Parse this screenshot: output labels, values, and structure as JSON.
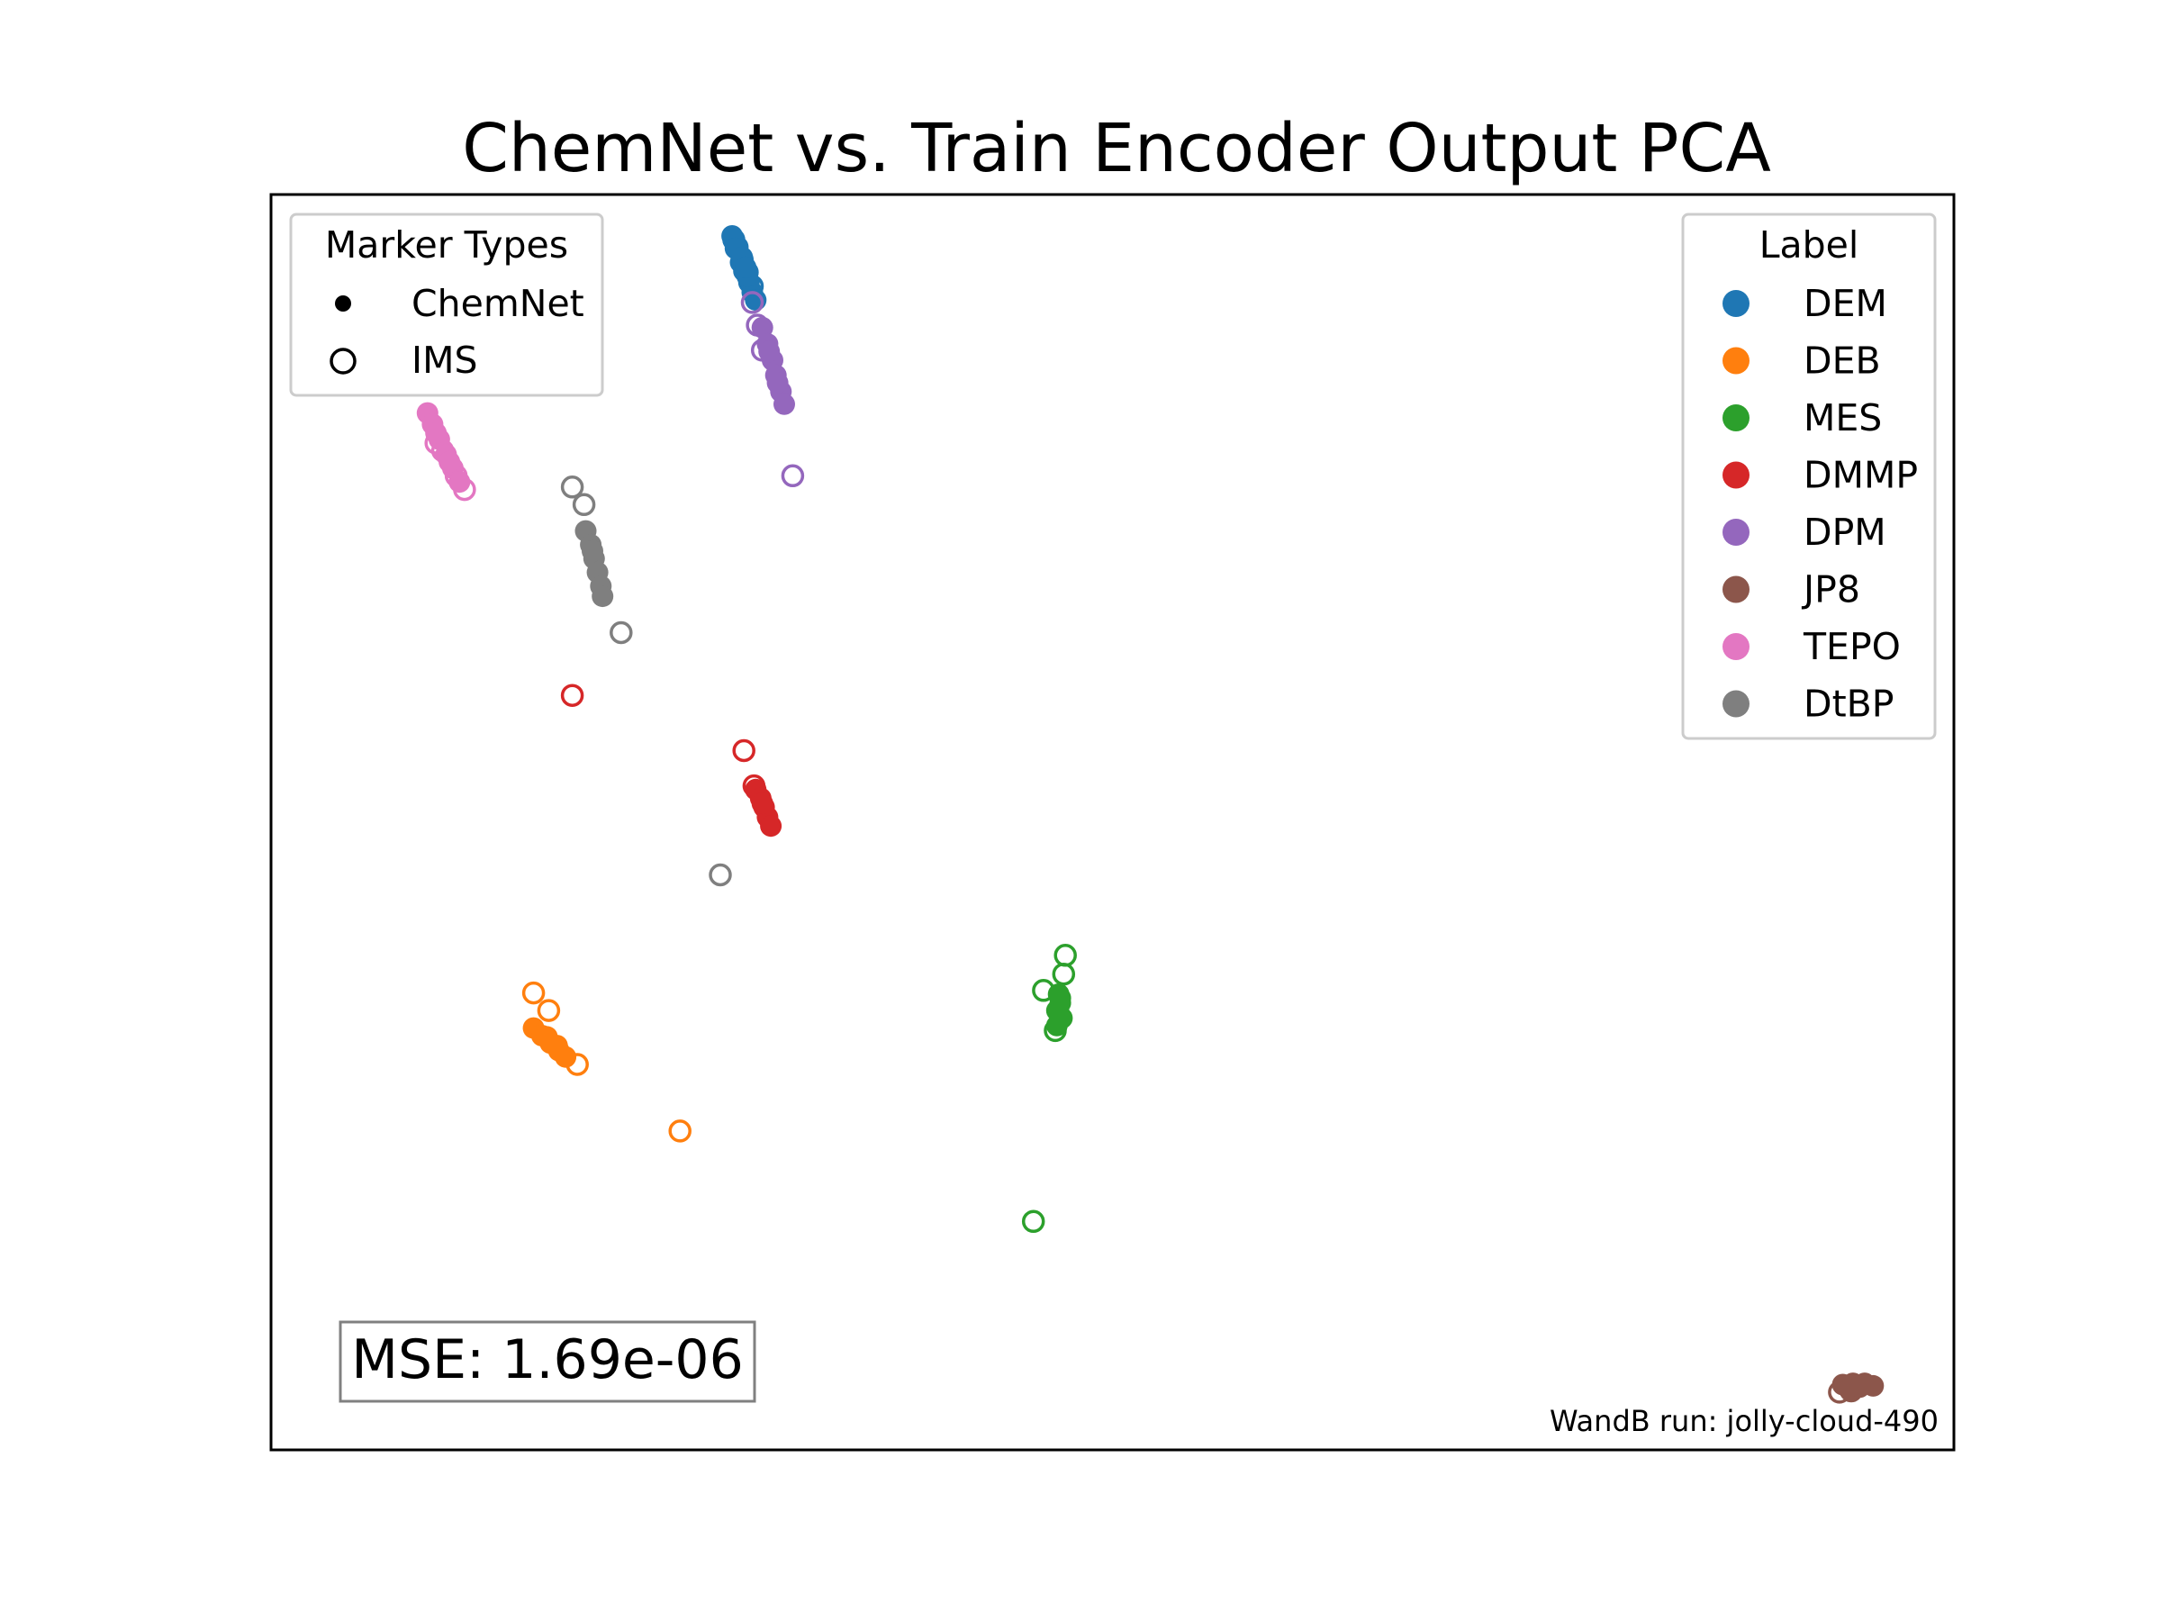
{
  "chart_data": {
    "type": "scatter",
    "title": "ChemNet vs. Train Encoder Output PCA",
    "xlabel": "",
    "ylabel": "",
    "axis_ticks": "none",
    "grid": false,
    "xlim": [
      0,
      100
    ],
    "ylim": [
      0,
      100
    ],
    "marker_legend": {
      "title": "Marker Types",
      "placement": "upper-left",
      "entries": [
        {
          "label": "ChemNet",
          "marker": "filled-circle"
        },
        {
          "label": "IMS",
          "marker": "open-circle"
        }
      ]
    },
    "label_legend": {
      "title": "Label",
      "placement": "upper-right"
    },
    "series": [
      {
        "name": "DEM",
        "color": "#1f77b4",
        "chemnet": [
          [
            27.4,
            96.7
          ],
          [
            27.6,
            95.7
          ],
          [
            27.9,
            94.6
          ],
          [
            28.1,
            93.9
          ],
          [
            28.4,
            93.0
          ],
          [
            28.6,
            92.2
          ],
          [
            28.0,
            95.0
          ],
          [
            28.3,
            93.5
          ],
          [
            28.8,
            91.6
          ],
          [
            28.2,
            94.2
          ]
        ],
        "ims": [
          [
            27.7,
            95.8
          ],
          [
            27.5,
            96.4
          ],
          [
            28.0,
            94.8
          ],
          [
            28.3,
            93.8
          ],
          [
            28.6,
            92.7
          ]
        ]
      },
      {
        "name": "DEB",
        "color": "#ff7f0e",
        "chemnet": [
          [
            15.6,
            33.6
          ],
          [
            16.1,
            33.0
          ],
          [
            16.6,
            32.4
          ],
          [
            17.1,
            31.8
          ],
          [
            17.5,
            31.3
          ],
          [
            16.4,
            32.9
          ],
          [
            17.0,
            32.2
          ]
        ],
        "ims": [
          [
            15.6,
            36.4
          ],
          [
            16.5,
            35.0
          ],
          [
            18.2,
            30.7
          ],
          [
            24.3,
            25.4
          ]
        ]
      },
      {
        "name": "MES",
        "color": "#2ca02c",
        "chemnet": [
          [
            46.8,
            36.3
          ],
          [
            46.9,
            35.6
          ],
          [
            46.7,
            35.0
          ],
          [
            47.0,
            34.4
          ],
          [
            46.7,
            33.8
          ],
          [
            46.9,
            36.0
          ],
          [
            46.8,
            34.9
          ]
        ],
        "ims": [
          [
            47.2,
            39.4
          ],
          [
            47.1,
            37.9
          ],
          [
            45.9,
            36.6
          ],
          [
            46.6,
            33.4
          ],
          [
            45.3,
            18.2
          ]
        ]
      },
      {
        "name": "DMMP",
        "color": "#d62728",
        "chemnet": [
          [
            28.8,
            52.6
          ],
          [
            29.1,
            51.9
          ],
          [
            29.3,
            51.2
          ],
          [
            29.5,
            50.4
          ],
          [
            29.7,
            49.7
          ],
          [
            29.2,
            51.5
          ]
        ],
        "ims": [
          [
            28.1,
            55.7
          ],
          [
            28.7,
            52.9
          ],
          [
            17.9,
            60.1
          ]
        ]
      },
      {
        "name": "DPM",
        "color": "#9467bd",
        "chemnet": [
          [
            29.2,
            89.4
          ],
          [
            29.5,
            88.1
          ],
          [
            29.8,
            86.8
          ],
          [
            30.0,
            85.6
          ],
          [
            30.3,
            84.3
          ],
          [
            30.5,
            83.3
          ],
          [
            29.6,
            87.5
          ],
          [
            30.1,
            85.0
          ]
        ],
        "ims": [
          [
            28.6,
            91.4
          ],
          [
            28.9,
            89.6
          ],
          [
            29.2,
            87.6
          ],
          [
            31.0,
            77.6
          ]
        ]
      },
      {
        "name": "JP8",
        "color": "#8c564b",
        "chemnet": [
          [
            93.4,
            5.2
          ],
          [
            94.0,
            5.3
          ],
          [
            94.7,
            5.3
          ],
          [
            95.2,
            5.1
          ],
          [
            93.8,
            4.8
          ],
          [
            94.4,
            5.0
          ]
        ],
        "ims": [
          [
            93.2,
            4.6
          ],
          [
            93.9,
            4.7
          ]
        ]
      },
      {
        "name": "TEPO",
        "color": "#e377c2",
        "chemnet": [
          [
            9.3,
            82.6
          ],
          [
            9.6,
            81.7
          ],
          [
            10.0,
            80.5
          ],
          [
            10.4,
            79.3
          ],
          [
            10.8,
            78.2
          ],
          [
            11.2,
            77.1
          ],
          [
            9.8,
            81.0
          ],
          [
            10.6,
            78.7
          ]
        ],
        "ims": [
          [
            9.8,
            80.2
          ],
          [
            10.2,
            79.6
          ],
          [
            11.0,
            77.6
          ],
          [
            11.5,
            76.5
          ]
        ]
      },
      {
        "name": "DtBP",
        "color": "#7f7f7f",
        "chemnet": [
          [
            18.7,
            73.2
          ],
          [
            19.0,
            72.1
          ],
          [
            19.2,
            71.0
          ],
          [
            19.4,
            69.9
          ],
          [
            19.6,
            68.8
          ],
          [
            19.7,
            68.0
          ],
          [
            19.1,
            71.6
          ]
        ],
        "ims": [
          [
            17.9,
            76.7
          ],
          [
            18.6,
            75.3
          ],
          [
            20.8,
            65.1
          ],
          [
            26.7,
            45.8
          ]
        ]
      }
    ],
    "annotations": [
      {
        "text": "MSE: 1.69e-06",
        "placement": "lower-left",
        "boxed": true
      },
      {
        "text": "WandB run: jolly-cloud-490",
        "placement": "lower-right"
      }
    ]
  }
}
